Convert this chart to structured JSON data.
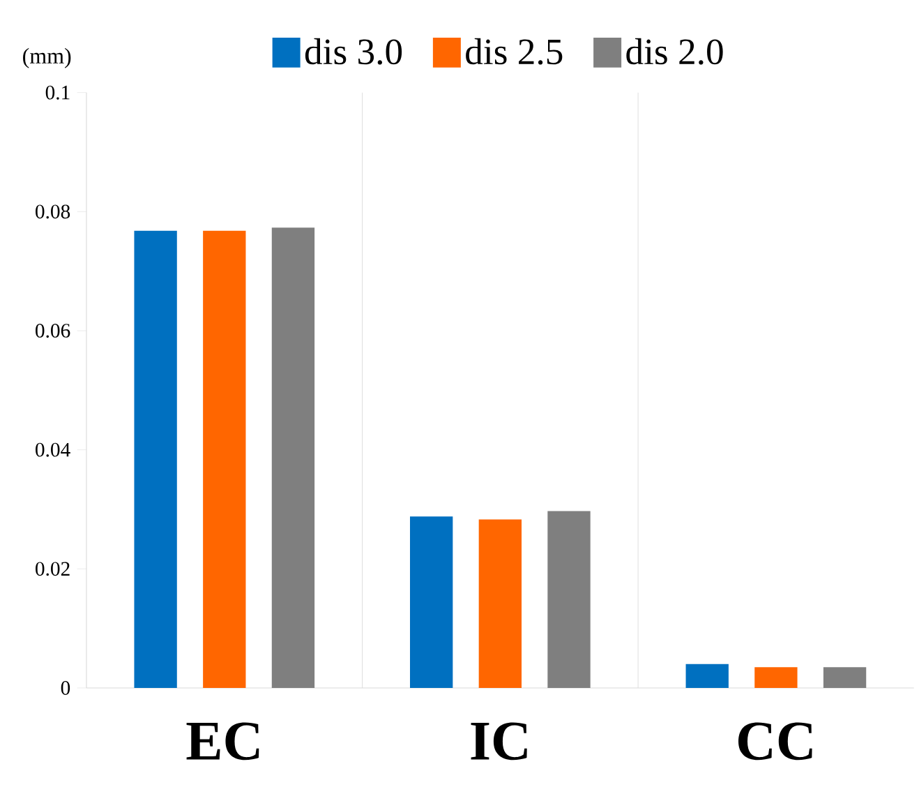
{
  "chart_data": {
    "type": "bar",
    "ylabel": "(mm)",
    "categories": [
      "EC",
      "IC",
      "CC"
    ],
    "series": [
      {
        "name": "dis 3.0",
        "color": "#0070c0",
        "values": [
          0.0768,
          0.0288,
          0.004
        ]
      },
      {
        "name": "dis 2.5",
        "color": "#ff6600",
        "values": [
          0.0768,
          0.0283,
          0.0035
        ]
      },
      {
        "name": "dis 2.0",
        "color": "#7f7f7f",
        "values": [
          0.0773,
          0.0297,
          0.0035
        ]
      }
    ],
    "ylim": [
      0,
      0.1
    ],
    "yticks": [
      0,
      0.02,
      0.04,
      0.06,
      0.08,
      0.1
    ],
    "grid": "x",
    "legend": "top"
  }
}
